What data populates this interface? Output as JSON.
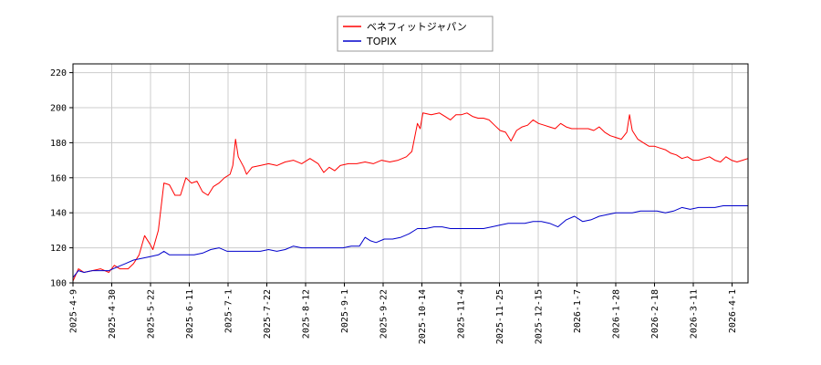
{
  "chart_data": {
    "type": "line",
    "title": "",
    "xlabel": "",
    "ylabel": "",
    "ylim": [
      100,
      225
    ],
    "yticks": [
      100,
      120,
      140,
      160,
      180,
      200,
      220
    ],
    "xticks": [
      "2025-4-9",
      "2025-4-30",
      "2025-5-22",
      "2025-6-11",
      "2025-7-1",
      "2025-7-22",
      "2025-8-12",
      "2025-9-1",
      "2025-9-22",
      "2025-10-14",
      "2025-11-4",
      "2025-11-25",
      "2025-12-15",
      "2026-1-7",
      "2026-1-28",
      "2026-2-18",
      "2026-3-11",
      "2026-4-1"
    ],
    "grid": true,
    "legend_position": "top-center",
    "x_index_range": [
      0,
      245
    ],
    "series": [
      {
        "name": "ベネフィットジャパン",
        "color": "#ff0000",
        "points": [
          [
            0,
            101
          ],
          [
            2,
            108
          ],
          [
            4,
            106
          ],
          [
            7,
            107
          ],
          [
            10,
            108
          ],
          [
            13,
            106
          ],
          [
            15,
            110
          ],
          [
            17,
            108
          ],
          [
            20,
            108
          ],
          [
            22,
            111
          ],
          [
            24,
            116
          ],
          [
            26,
            127
          ],
          [
            28,
            122
          ],
          [
            29,
            119
          ],
          [
            31,
            130
          ],
          [
            33,
            157
          ],
          [
            35,
            156
          ],
          [
            37,
            150
          ],
          [
            39,
            150
          ],
          [
            41,
            160
          ],
          [
            43,
            157
          ],
          [
            45,
            158
          ],
          [
            47,
            152
          ],
          [
            49,
            150
          ],
          [
            51,
            155
          ],
          [
            53,
            157
          ],
          [
            55,
            160
          ],
          [
            57,
            162
          ],
          [
            58,
            167
          ],
          [
            59,
            182
          ],
          [
            60,
            172
          ],
          [
            62,
            166
          ],
          [
            63,
            162
          ],
          [
            65,
            166
          ],
          [
            68,
            167
          ],
          [
            71,
            168
          ],
          [
            74,
            167
          ],
          [
            77,
            169
          ],
          [
            80,
            170
          ],
          [
            83,
            168
          ],
          [
            86,
            171
          ],
          [
            89,
            168
          ],
          [
            91,
            163
          ],
          [
            93,
            166
          ],
          [
            95,
            164
          ],
          [
            97,
            167
          ],
          [
            100,
            168
          ],
          [
            103,
            168
          ],
          [
            106,
            169
          ],
          [
            109,
            168
          ],
          [
            112,
            170
          ],
          [
            115,
            169
          ],
          [
            118,
            170
          ],
          [
            121,
            172
          ],
          [
            123,
            175
          ],
          [
            125,
            191
          ],
          [
            126,
            188
          ],
          [
            127,
            197
          ],
          [
            130,
            196
          ],
          [
            133,
            197
          ],
          [
            135,
            195
          ],
          [
            137,
            193
          ],
          [
            139,
            196
          ],
          [
            141,
            196
          ],
          [
            143,
            197
          ],
          [
            145,
            195
          ],
          [
            147,
            194
          ],
          [
            149,
            194
          ],
          [
            151,
            193
          ],
          [
            153,
            190
          ],
          [
            155,
            187
          ],
          [
            157,
            186
          ],
          [
            159,
            181
          ],
          [
            161,
            187
          ],
          [
            163,
            189
          ],
          [
            165,
            190
          ],
          [
            167,
            193
          ],
          [
            169,
            191
          ],
          [
            171,
            190
          ],
          [
            173,
            189
          ],
          [
            175,
            188
          ],
          [
            177,
            191
          ],
          [
            179,
            189
          ],
          [
            181,
            188
          ],
          [
            183,
            188
          ],
          [
            185,
            188
          ],
          [
            187,
            188
          ],
          [
            189,
            187
          ],
          [
            191,
            189
          ],
          [
            193,
            186
          ],
          [
            195,
            184
          ],
          [
            197,
            183
          ],
          [
            199,
            182
          ],
          [
            201,
            186
          ],
          [
            202,
            196
          ],
          [
            203,
            187
          ],
          [
            205,
            182
          ],
          [
            207,
            180
          ],
          [
            209,
            178
          ],
          [
            211,
            178
          ],
          [
            213,
            177
          ],
          [
            215,
            176
          ],
          [
            217,
            174
          ],
          [
            219,
            173
          ],
          [
            221,
            171
          ],
          [
            223,
            172
          ],
          [
            225,
            170
          ],
          [
            227,
            170
          ],
          [
            229,
            171
          ],
          [
            231,
            172
          ],
          [
            233,
            170
          ],
          [
            235,
            169
          ],
          [
            237,
            172
          ],
          [
            239,
            170
          ],
          [
            241,
            169
          ],
          [
            243,
            170
          ],
          [
            245,
            171
          ]
        ]
      },
      {
        "name": "TOPIX",
        "color": "#0000cc",
        "points": [
          [
            0,
            103
          ],
          [
            2,
            107
          ],
          [
            4,
            106
          ],
          [
            7,
            107
          ],
          [
            10,
            107
          ],
          [
            13,
            107
          ],
          [
            16,
            109
          ],
          [
            19,
            111
          ],
          [
            22,
            113
          ],
          [
            25,
            114
          ],
          [
            28,
            115
          ],
          [
            31,
            116
          ],
          [
            33,
            118
          ],
          [
            35,
            116
          ],
          [
            38,
            116
          ],
          [
            41,
            116
          ],
          [
            44,
            116
          ],
          [
            47,
            117
          ],
          [
            50,
            119
          ],
          [
            53,
            120
          ],
          [
            56,
            118
          ],
          [
            59,
            118
          ],
          [
            62,
            118
          ],
          [
            65,
            118
          ],
          [
            68,
            118
          ],
          [
            71,
            119
          ],
          [
            74,
            118
          ],
          [
            77,
            119
          ],
          [
            80,
            121
          ],
          [
            83,
            120
          ],
          [
            86,
            120
          ],
          [
            89,
            120
          ],
          [
            92,
            120
          ],
          [
            95,
            120
          ],
          [
            98,
            120
          ],
          [
            101,
            121
          ],
          [
            104,
            121
          ],
          [
            106,
            126
          ],
          [
            108,
            124
          ],
          [
            110,
            123
          ],
          [
            113,
            125
          ],
          [
            116,
            125
          ],
          [
            119,
            126
          ],
          [
            122,
            128
          ],
          [
            125,
            131
          ],
          [
            128,
            131
          ],
          [
            131,
            132
          ],
          [
            134,
            132
          ],
          [
            137,
            131
          ],
          [
            140,
            131
          ],
          [
            143,
            131
          ],
          [
            146,
            131
          ],
          [
            149,
            131
          ],
          [
            152,
            132
          ],
          [
            155,
            133
          ],
          [
            158,
            134
          ],
          [
            161,
            134
          ],
          [
            164,
            134
          ],
          [
            167,
            135
          ],
          [
            170,
            135
          ],
          [
            173,
            134
          ],
          [
            176,
            132
          ],
          [
            179,
            136
          ],
          [
            182,
            138
          ],
          [
            185,
            135
          ],
          [
            188,
            136
          ],
          [
            191,
            138
          ],
          [
            194,
            139
          ],
          [
            197,
            140
          ],
          [
            200,
            140
          ],
          [
            203,
            140
          ],
          [
            206,
            141
          ],
          [
            209,
            141
          ],
          [
            212,
            141
          ],
          [
            215,
            140
          ],
          [
            218,
            141
          ],
          [
            221,
            143
          ],
          [
            224,
            142
          ],
          [
            227,
            143
          ],
          [
            230,
            143
          ],
          [
            233,
            143
          ],
          [
            236,
            144
          ],
          [
            239,
            144
          ],
          [
            242,
            144
          ],
          [
            245,
            144
          ]
        ]
      }
    ]
  }
}
